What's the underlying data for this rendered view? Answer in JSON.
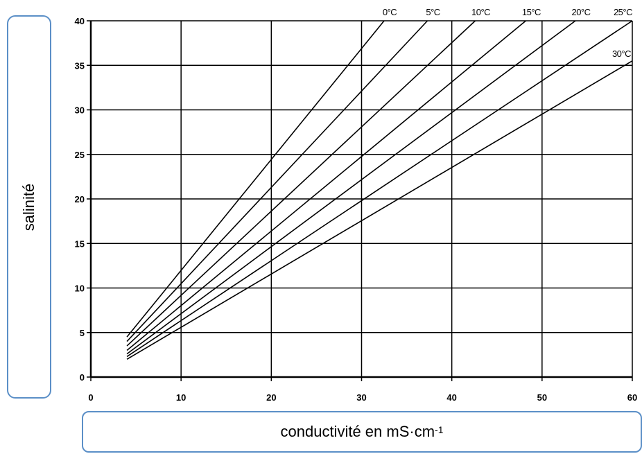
{
  "chart_data": {
    "type": "line",
    "xlabel_main": "conductivité en mS·cm",
    "xlabel_sup": "-1",
    "ylabel": "salinité",
    "xlim": [
      0,
      60
    ],
    "ylim": [
      0,
      40
    ],
    "x_ticks": [
      "0",
      "10",
      "20",
      "30",
      "40",
      "50",
      "60"
    ],
    "y_ticks": [
      "0",
      "5",
      "10",
      "15",
      "20",
      "25",
      "30",
      "35",
      "40"
    ],
    "grid": true,
    "series": [
      {
        "name": "0°C",
        "label": "0°C",
        "x": [
          4,
          32.5
        ],
        "y": [
          4.5,
          40
        ]
      },
      {
        "name": "5°C",
        "label": "5°C",
        "x": [
          4,
          37.3
        ],
        "y": [
          4.0,
          40
        ]
      },
      {
        "name": "10°C",
        "label": "10°C",
        "x": [
          4,
          42.6
        ],
        "y": [
          3.5,
          40
        ]
      },
      {
        "name": "15°C",
        "label": "15°C",
        "x": [
          4,
          48.2
        ],
        "y": [
          3.0,
          40
        ]
      },
      {
        "name": "20°C",
        "label": "20°C",
        "x": [
          4,
          53.7
        ],
        "y": [
          2.6,
          40
        ]
      },
      {
        "name": "25°C",
        "label": "25°C",
        "x": [
          4,
          60
        ],
        "y": [
          2.3,
          40
        ]
      },
      {
        "name": "30°C",
        "label": "30°C",
        "x": [
          4,
          60
        ],
        "y": [
          2.0,
          35.5
        ]
      }
    ]
  }
}
